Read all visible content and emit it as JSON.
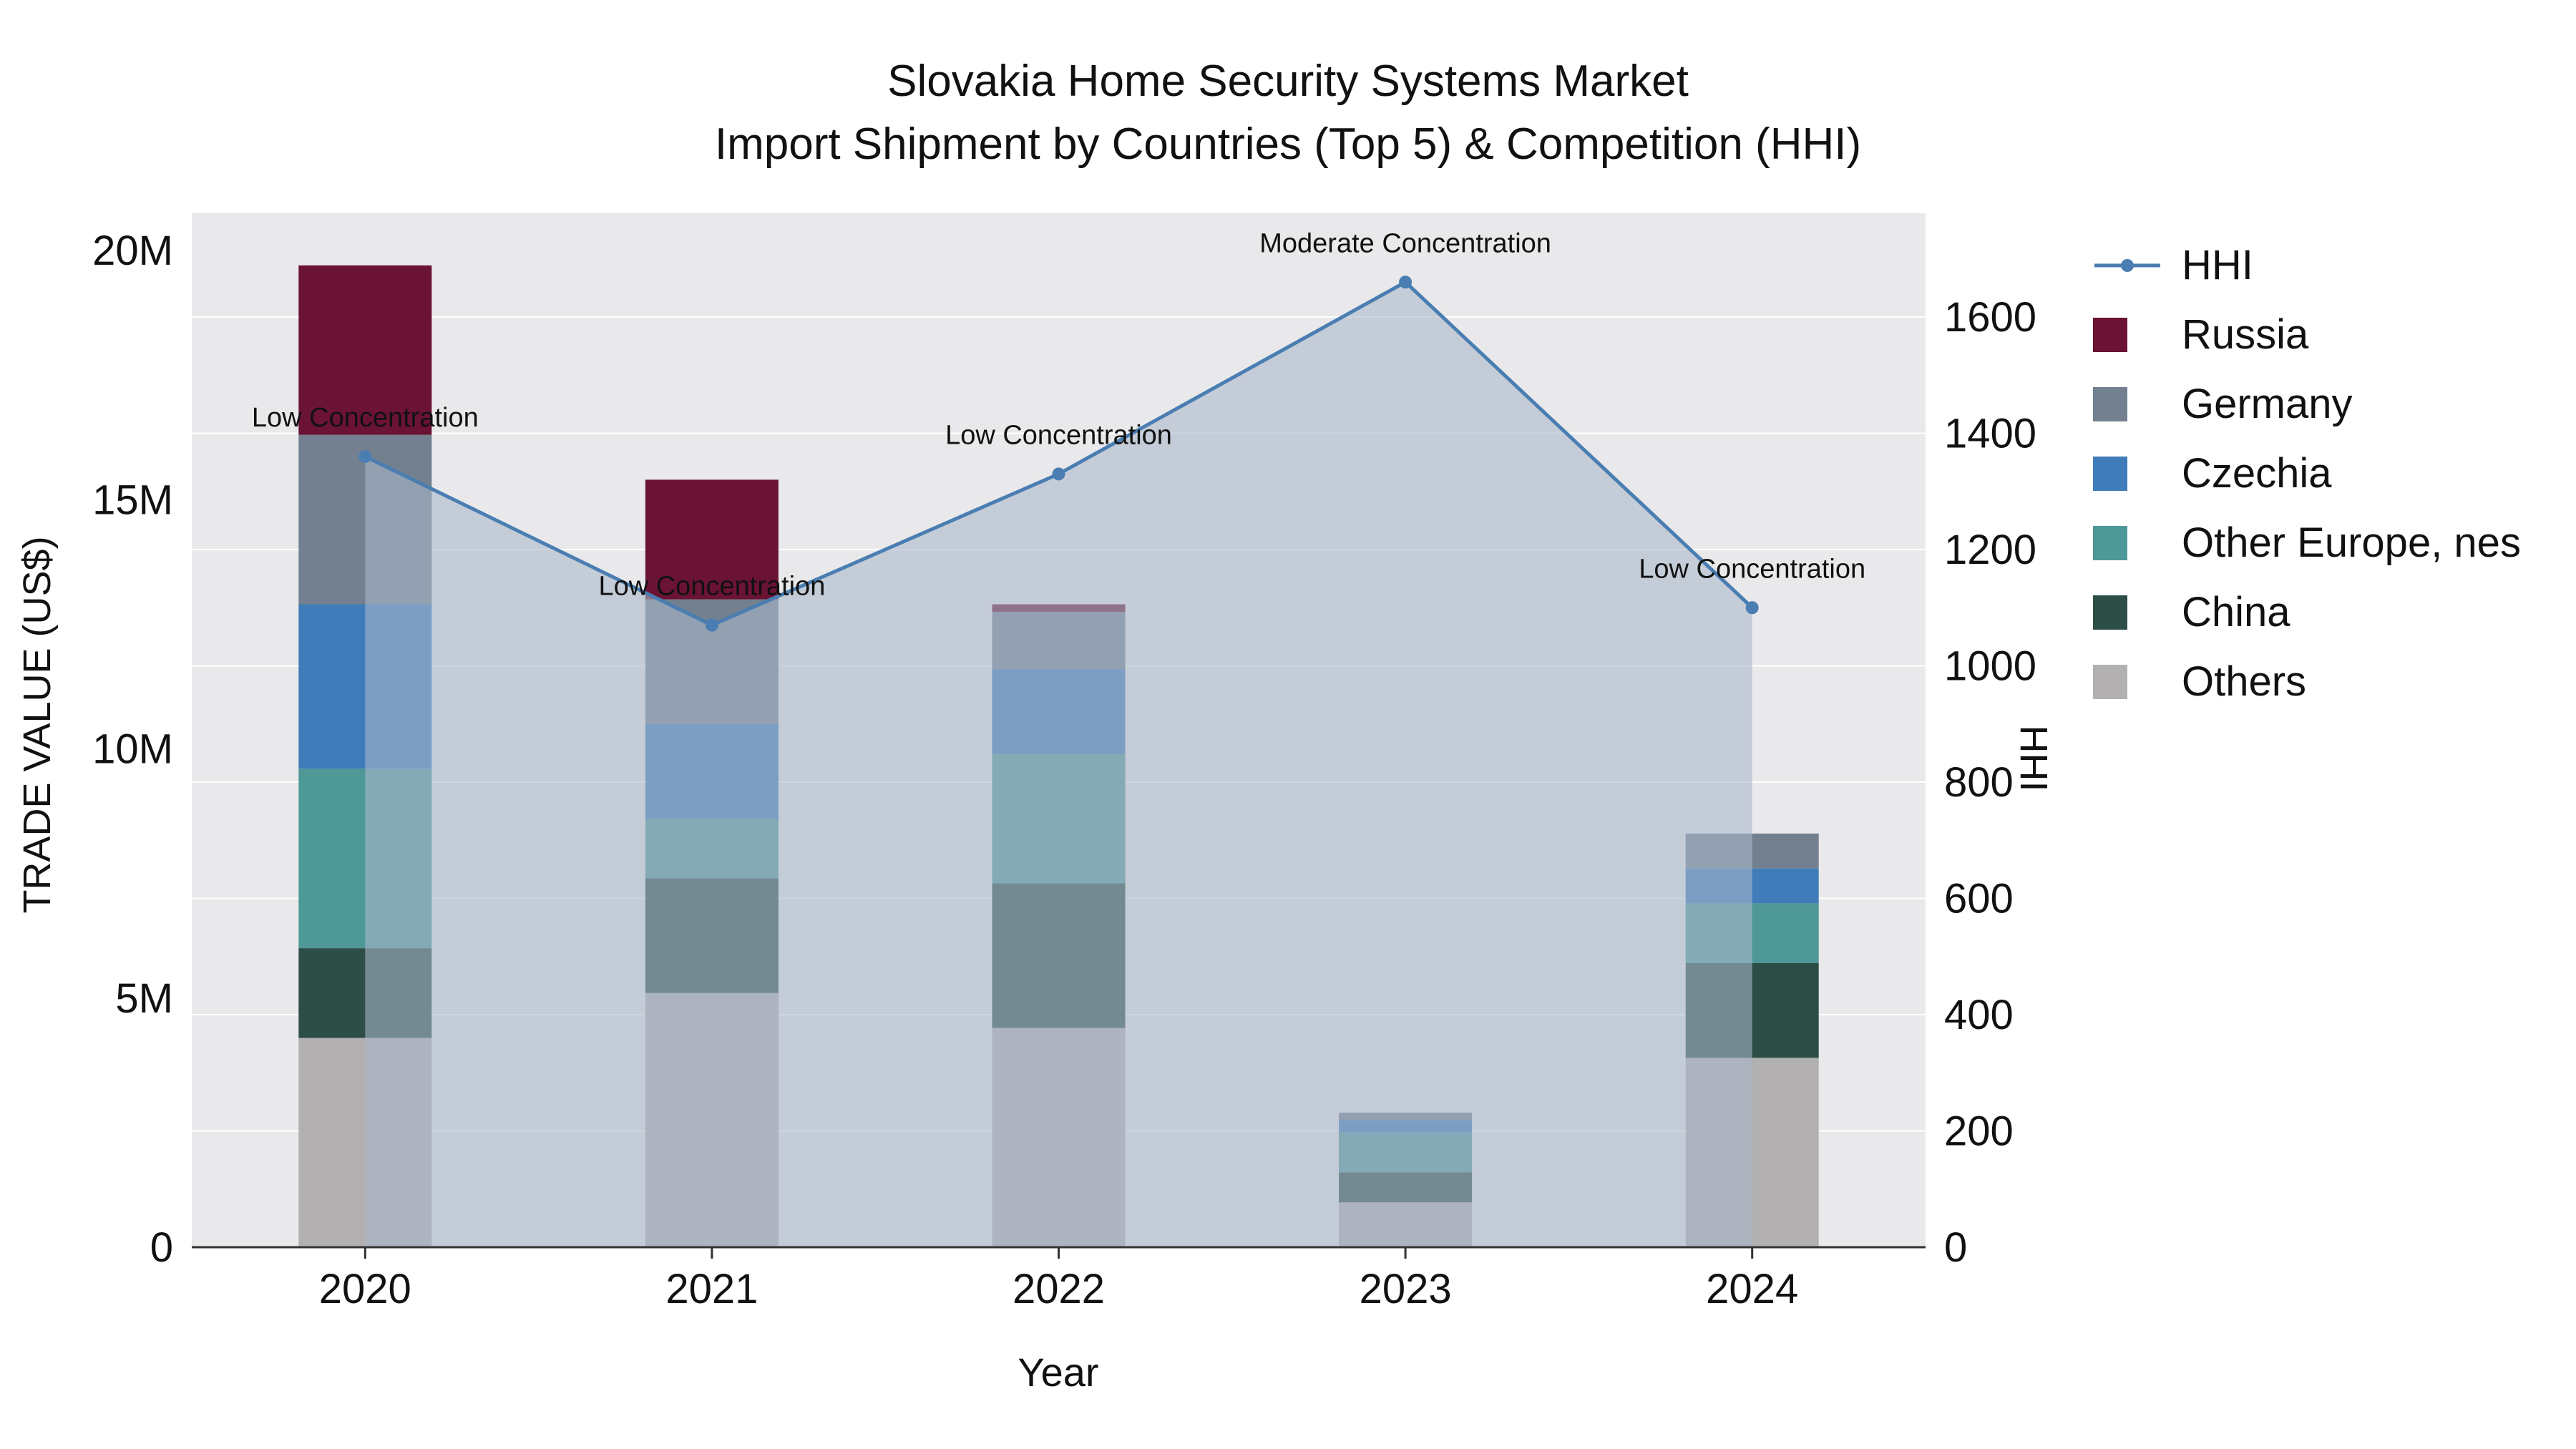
{
  "title": {
    "line1": "Slovakia Home Security Systems Market",
    "line2": "Import Shipment by Countries (Top 5) & Competition (HHI)"
  },
  "legend": {
    "position": "right",
    "items": [
      {
        "label": "HHI",
        "type": "line",
        "color": "#4a7eb2"
      },
      {
        "label": "Russia",
        "type": "swatch",
        "color": "#6b1334"
      },
      {
        "label": "Germany",
        "type": "swatch",
        "color": "#72808f"
      },
      {
        "label": "Czechia",
        "type": "swatch",
        "color": "#407cb9"
      },
      {
        "label": "Other Europe, nes",
        "type": "swatch",
        "color": "#4f9898"
      },
      {
        "label": "China",
        "type": "swatch",
        "color": "#2d4e47"
      },
      {
        "label": "Others",
        "type": "swatch",
        "color": "#b2b0b0"
      }
    ]
  },
  "chart_data": {
    "type": "combo-stacked-bar-line",
    "x_label": "Year",
    "categories": [
      "2020",
      "2021",
      "2022",
      "2023",
      "2024"
    ],
    "bar_unit": "M US$",
    "bar_stack_order": "bottom-to-top",
    "bar_series": [
      {
        "name": "Others",
        "color": "#b2b0b0",
        "values": [
          4.2,
          5.1,
          4.4,
          0.9,
          3.8
        ]
      },
      {
        "name": "China",
        "color": "#2d4e47",
        "values": [
          1.8,
          2.3,
          2.9,
          0.6,
          1.9
        ]
      },
      {
        "name": "Other Europe, nes",
        "color": "#4f9898",
        "values": [
          3.6,
          1.2,
          2.6,
          0.8,
          1.2
        ]
      },
      {
        "name": "Czechia",
        "color": "#407cb9",
        "values": [
          3.3,
          1.9,
          1.7,
          0.25,
          0.7
        ]
      },
      {
        "name": "Germany",
        "color": "#72808f",
        "values": [
          3.4,
          2.5,
          1.15,
          0.15,
          0.7
        ]
      },
      {
        "name": "Russia",
        "color": "#6b1334",
        "values": [
          3.4,
          2.4,
          0.15,
          0,
          0
        ]
      }
    ],
    "line_series": {
      "name": "HHI",
      "color": "#4a7eb2",
      "fill": "rgba(168,182,202,0.58)",
      "values": [
        1360,
        1070,
        1330,
        1660,
        1100
      ]
    },
    "annotations": [
      {
        "x": "2020",
        "text": "Low Concentration"
      },
      {
        "x": "2021",
        "text": "Low Concentration"
      },
      {
        "x": "2022",
        "text": "Low Concentration"
      },
      {
        "x": "2023",
        "text": "Moderate Concentration"
      },
      {
        "x": "2024",
        "text": "Low Concentration"
      }
    ],
    "y_left": {
      "label": "TRADE VALUE (US$)",
      "max": 20,
      "ticks": [
        0,
        5,
        10,
        15,
        20
      ],
      "tick_labels": [
        "0",
        "5M",
        "10M",
        "15M",
        "20M"
      ]
    },
    "y_right": {
      "label": "HHI",
      "ticks": [
        0,
        200,
        400,
        600,
        800,
        1000,
        1200,
        1400,
        1600
      ]
    },
    "colors": {
      "plot_bg": "#e9e9eb",
      "grid": "#ffffff",
      "axis_line": "#333333",
      "text": "#111111"
    }
  }
}
